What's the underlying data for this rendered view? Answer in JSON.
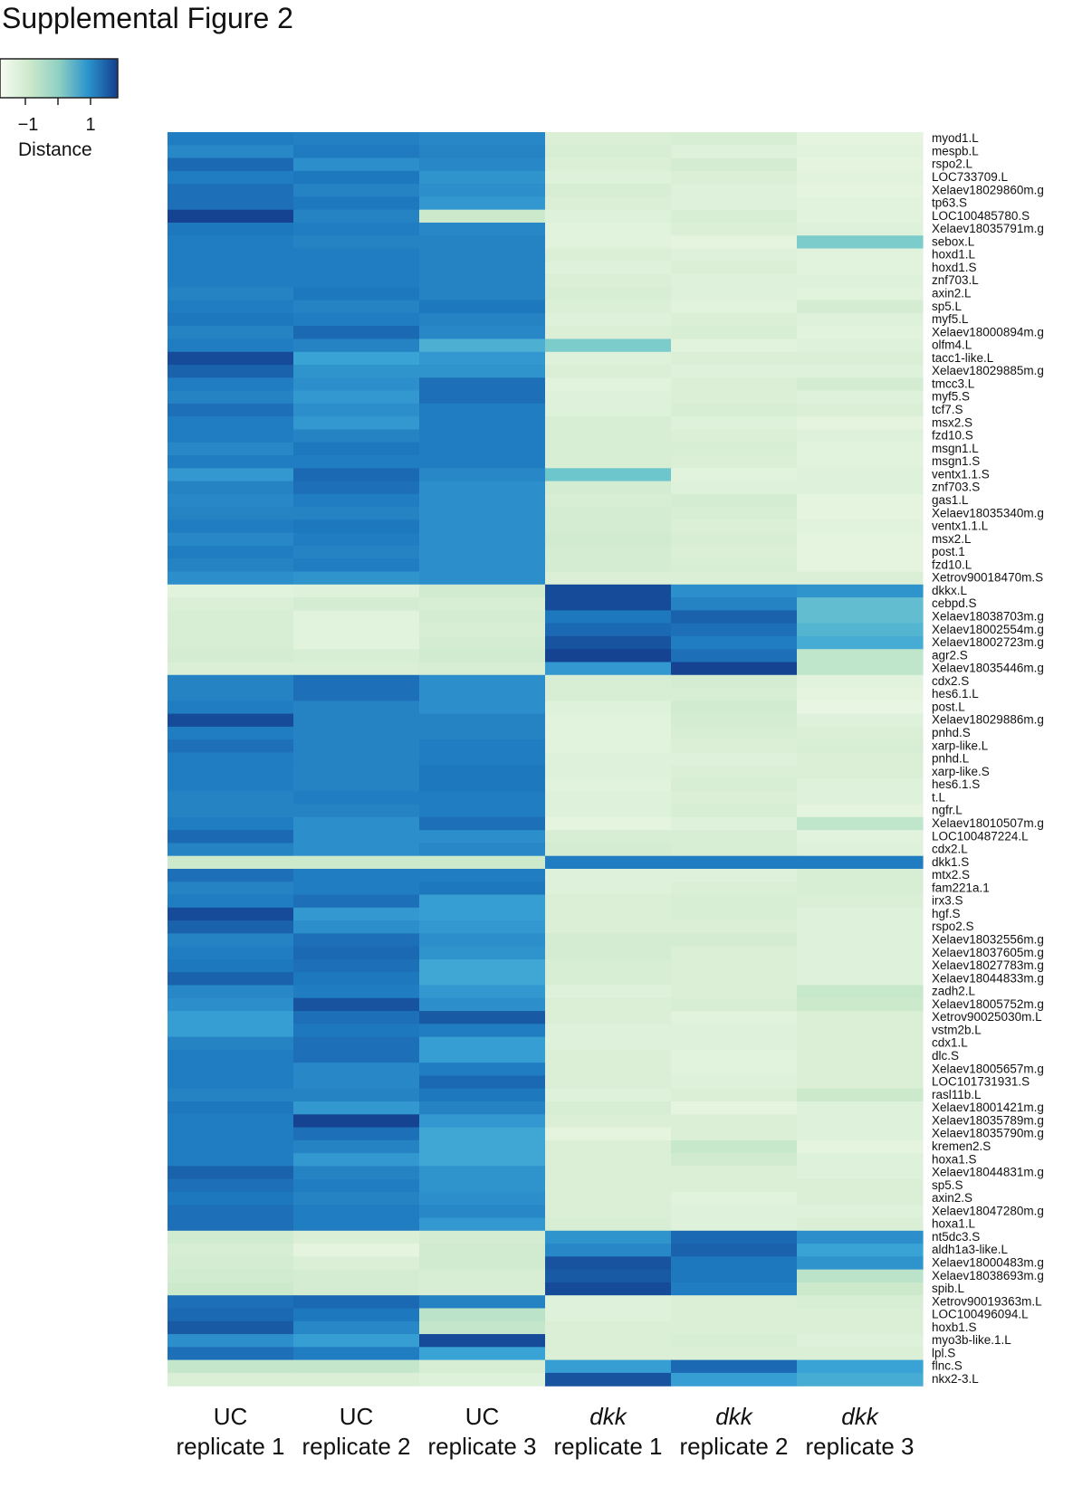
{
  "title": "Supplemental Figure 2",
  "legend": {
    "title": "Distance",
    "ticks": [
      "−1",
      "1"
    ],
    "low_color": "#f7fbf1",
    "high_color": "#1a4f9a"
  },
  "chart_data": {
    "type": "heatmap",
    "title": "Supplemental Figure 2",
    "columns": [
      {
        "top": "UC",
        "bottom": "replicate 1",
        "italic": false
      },
      {
        "top": "UC",
        "bottom": "replicate 2",
        "italic": false
      },
      {
        "top": "UC",
        "bottom": "replicate 3",
        "italic": false
      },
      {
        "top": "dkk",
        "bottom": "replicate 1",
        "italic": true
      },
      {
        "top": "dkk",
        "bottom": "replicate 2",
        "italic": true
      },
      {
        "top": "dkk",
        "bottom": "replicate 3",
        "italic": true
      }
    ],
    "rows": [
      "myod1.L",
      "mespb.L",
      "rspo2.L",
      "LOC733709.L",
      "Xelaev18029860m.g",
      "tp63.S",
      "LOC100485780.S",
      "Xelaev18035791m.g",
      "sebox.L",
      "hoxd1.L",
      "hoxd1.S",
      "znf703.L",
      "axin2.L",
      "sp5.L",
      "myf5.L",
      "Xelaev18000894m.g",
      "olfm4.L",
      "tacc1-like.L",
      "Xelaev18029885m.g",
      "tmcc3.L",
      "myf5.S",
      "tcf7.S",
      "msx2.S",
      "fzd10.S",
      "msgn1.L",
      "msgn1.S",
      "ventx1.1.S",
      "znf703.S",
      "gas1.L",
      "Xelaev18035340m.g",
      "ventx1.1.L",
      "msx2.L",
      "post.1",
      "fzd10.L",
      "Xetrov90018470m.S",
      "dkkx.L",
      "cebpd.S",
      "Xelaev18038703m.g",
      "Xelaev18002554m.g",
      "Xelaev18002723m.g",
      "agr2.S",
      "Xelaev18035446m.g",
      "cdx2.S",
      "hes6.1.L",
      "post.L",
      "Xelaev18029886m.g",
      "pnhd.S",
      "xarp-like.L",
      "pnhd.L",
      "xarp-like.S",
      "hes6.1.S",
      "t.L",
      "ngfr.L",
      "Xelaev18010507m.g",
      "LOC100487224.L",
      "cdx2.L",
      "dkk1.S",
      "mtx2.S",
      "fam221a.1",
      "irx3.S",
      "hgf.S",
      "rspo2.S",
      "Xelaev18032556m.g",
      "Xelaev18037605m.g",
      "Xelaev18027783m.g",
      "Xelaev18044833m.g",
      "zadh2.L",
      "Xelaev18005752m.g",
      "Xetrov90025030m.L",
      "vstm2b.L",
      "cdx1.L",
      "dlc.S",
      "Xelaev18005657m.g",
      "LOC101731931.S",
      "rasl11b.L",
      "Xelaev18001421m.g",
      "Xelaev18035789m.g",
      "Xelaev18035790m.g",
      "kremen2.S",
      "hoxa1.S",
      "Xelaev18044831m.g",
      "sp5.S",
      "axin2.S",
      "Xelaev18047280m.g",
      "hoxa1.L",
      "nt5dc3.S",
      "aldh1a3-like.L",
      "Xelaev18000483m.g",
      "Xelaev18038693m.g",
      "spib.L",
      "Xetrov90019363m.L",
      "LOC100496094.L",
      "hoxb1.S",
      "myo3b-like.1.L",
      "lpl.S",
      "flnc.S",
      "nkx2-3.L"
    ],
    "values": [
      [
        0.95,
        0.93,
        0.85,
        -0.8,
        -0.75,
        -0.95
      ],
      [
        0.85,
        0.98,
        0.9,
        -0.75,
        -0.85,
        -0.9
      ],
      [
        1.1,
        0.8,
        0.85,
        -0.8,
        -0.7,
        -0.95
      ],
      [
        0.95,
        1.0,
        0.75,
        -0.85,
        -0.8,
        -0.9
      ],
      [
        1.05,
        0.9,
        0.8,
        -0.75,
        -0.85,
        -0.95
      ],
      [
        1.05,
        1.0,
        0.7,
        -0.8,
        -0.85,
        -0.9
      ],
      [
        1.35,
        0.9,
        -0.6,
        -0.85,
        -0.75,
        -0.9
      ],
      [
        1.0,
        0.95,
        0.85,
        -0.9,
        -0.8,
        -0.85
      ],
      [
        0.95,
        0.9,
        0.9,
        -0.9,
        -0.95,
        0.1
      ],
      [
        0.95,
        0.95,
        0.9,
        -0.8,
        -0.85,
        -0.9
      ],
      [
        0.95,
        0.95,
        0.9,
        -0.85,
        -0.8,
        -0.9
      ],
      [
        0.95,
        0.95,
        0.9,
        -0.8,
        -0.85,
        -0.85
      ],
      [
        0.9,
        1.0,
        0.9,
        -0.75,
        -0.85,
        -0.9
      ],
      [
        0.95,
        0.9,
        1.0,
        -0.8,
        -0.9,
        -0.7
      ],
      [
        1.0,
        0.95,
        0.9,
        -0.85,
        -0.8,
        -0.85
      ],
      [
        0.9,
        1.1,
        0.85,
        -0.8,
        -0.75,
        -0.9
      ],
      [
        0.95,
        0.9,
        0.45,
        0.1,
        -0.9,
        -0.85
      ],
      [
        1.3,
        0.6,
        0.7,
        -0.85,
        -0.8,
        -0.8
      ],
      [
        1.15,
        0.75,
        0.75,
        -0.8,
        -0.85,
        -0.85
      ],
      [
        0.95,
        0.8,
        1.05,
        -0.9,
        -0.8,
        -0.7
      ],
      [
        0.9,
        0.7,
        1.05,
        -0.85,
        -0.8,
        -0.85
      ],
      [
        1.05,
        0.8,
        0.95,
        -0.85,
        -0.75,
        -0.8
      ],
      [
        0.95,
        0.7,
        0.95,
        -0.75,
        -0.85,
        -0.95
      ],
      [
        0.95,
        0.9,
        0.95,
        -0.75,
        -0.8,
        -0.85
      ],
      [
        0.85,
        1.0,
        0.95,
        -0.75,
        -0.75,
        -0.9
      ],
      [
        0.95,
        0.95,
        0.95,
        -0.75,
        -0.8,
        -0.9
      ],
      [
        0.7,
        1.1,
        0.85,
        0.2,
        -0.9,
        -0.85
      ],
      [
        0.9,
        1.05,
        0.8,
        -0.7,
        -0.85,
        -0.85
      ],
      [
        0.85,
        0.95,
        0.8,
        -0.75,
        -0.7,
        -0.95
      ],
      [
        0.9,
        0.9,
        0.8,
        -0.7,
        -0.75,
        -0.95
      ],
      [
        0.95,
        1.0,
        0.8,
        -0.7,
        -0.8,
        -0.9
      ],
      [
        0.85,
        0.95,
        0.8,
        -0.65,
        -0.75,
        -0.95
      ],
      [
        0.95,
        0.9,
        0.8,
        -0.7,
        -0.8,
        -0.95
      ],
      [
        0.9,
        0.95,
        0.8,
        -0.7,
        -0.75,
        -0.95
      ],
      [
        0.8,
        0.75,
        0.8,
        -0.8,
        -0.8,
        -0.8
      ],
      [
        -0.9,
        -0.85,
        -0.65,
        1.3,
        0.8,
        0.75
      ],
      [
        -0.8,
        -0.7,
        -0.75,
        1.3,
        0.9,
        0.3
      ],
      [
        -0.75,
        -0.9,
        -0.7,
        1.0,
        1.15,
        0.3
      ],
      [
        -0.75,
        -0.9,
        -0.75,
        1.1,
        1.05,
        0.4
      ],
      [
        -0.75,
        -0.9,
        -0.7,
        1.25,
        0.95,
        0.5
      ],
      [
        -0.7,
        -0.75,
        -0.65,
        1.35,
        1.05,
        -0.45
      ],
      [
        -0.8,
        -0.8,
        -0.75,
        0.7,
        1.35,
        -0.45
      ],
      [
        0.9,
        1.05,
        0.8,
        -0.75,
        -0.7,
        -0.9
      ],
      [
        0.9,
        1.05,
        0.8,
        -0.75,
        -0.75,
        -0.95
      ],
      [
        0.95,
        0.9,
        0.8,
        -0.85,
        -0.65,
        -1.0
      ],
      [
        1.3,
        0.9,
        0.9,
        -0.9,
        -0.7,
        -0.85
      ],
      [
        0.95,
        0.9,
        0.9,
        -0.9,
        -0.75,
        -0.8
      ],
      [
        1.05,
        0.9,
        0.95,
        -0.9,
        -0.8,
        -0.75
      ],
      [
        0.95,
        0.9,
        0.95,
        -0.85,
        -0.85,
        -0.8
      ],
      [
        0.95,
        0.9,
        1.0,
        -0.85,
        -0.8,
        -0.8
      ],
      [
        0.95,
        0.9,
        1.0,
        -0.9,
        -0.75,
        -0.85
      ],
      [
        0.9,
        0.95,
        0.95,
        -0.85,
        -0.8,
        -0.85
      ],
      [
        0.9,
        0.9,
        0.95,
        -0.85,
        -0.75,
        -0.95
      ],
      [
        0.95,
        0.8,
        1.05,
        -0.95,
        -0.85,
        -0.45
      ],
      [
        1.1,
        0.8,
        0.8,
        -0.75,
        -0.75,
        -0.9
      ],
      [
        0.9,
        0.8,
        0.85,
        -0.7,
        -0.75,
        -0.85
      ],
      [
        -0.6,
        -0.6,
        -0.6,
        0.95,
        0.95,
        0.95
      ],
      [
        1.05,
        0.95,
        0.95,
        -0.85,
        -0.85,
        -0.75
      ],
      [
        0.9,
        0.95,
        1.0,
        -0.85,
        -0.8,
        -0.75
      ],
      [
        0.95,
        1.05,
        0.65,
        -0.8,
        -0.75,
        -0.8
      ],
      [
        1.3,
        0.7,
        0.65,
        -0.8,
        -0.75,
        -0.85
      ],
      [
        1.15,
        0.8,
        0.7,
        -0.8,
        -0.8,
        -0.85
      ],
      [
        0.9,
        1.05,
        0.8,
        -0.7,
        -0.7,
        -0.85
      ],
      [
        0.95,
        1.1,
        0.75,
        -0.7,
        -0.8,
        -0.85
      ],
      [
        1.0,
        1.05,
        0.55,
        -0.75,
        -0.8,
        -0.85
      ],
      [
        1.15,
        1.0,
        0.55,
        -0.75,
        -0.8,
        -0.85
      ],
      [
        0.85,
        0.95,
        0.7,
        -0.85,
        -0.8,
        -0.55
      ],
      [
        0.8,
        1.25,
        0.8,
        -0.8,
        -0.75,
        -0.6
      ],
      [
        0.65,
        1.05,
        1.2,
        -0.8,
        -0.9,
        -0.8
      ],
      [
        0.65,
        1.0,
        0.95,
        -0.85,
        -0.85,
        -0.8
      ],
      [
        0.9,
        1.05,
        0.65,
        -0.85,
        -0.85,
        -0.8
      ],
      [
        0.95,
        1.05,
        0.65,
        -0.8,
        -0.9,
        -0.8
      ],
      [
        0.95,
        0.85,
        0.95,
        -0.8,
        -0.9,
        -0.8
      ],
      [
        0.95,
        0.85,
        1.1,
        -0.8,
        -0.85,
        -0.8
      ],
      [
        0.9,
        0.9,
        1.0,
        -0.85,
        -0.8,
        -0.6
      ],
      [
        1.0,
        0.7,
        0.9,
        -0.75,
        -0.95,
        -0.85
      ],
      [
        0.95,
        1.35,
        0.7,
        -0.8,
        -0.8,
        -0.85
      ],
      [
        0.95,
        1.05,
        0.55,
        -0.95,
        -0.8,
        -0.85
      ],
      [
        0.95,
        0.9,
        0.55,
        -0.8,
        -0.55,
        -0.95
      ],
      [
        0.95,
        0.7,
        0.55,
        -0.8,
        -0.65,
        -0.85
      ],
      [
        1.15,
        0.9,
        0.75,
        -0.8,
        -0.8,
        -0.85
      ],
      [
        1.05,
        0.95,
        0.75,
        -0.8,
        -0.8,
        -0.8
      ],
      [
        1.0,
        0.9,
        0.8,
        -0.8,
        -0.9,
        -0.8
      ],
      [
        1.05,
        0.95,
        0.85,
        -0.8,
        -0.85,
        -0.85
      ],
      [
        1.05,
        0.95,
        0.7,
        -0.75,
        -0.85,
        -0.8
      ],
      [
        -0.65,
        -0.8,
        -0.7,
        0.75,
        1.1,
        0.8
      ],
      [
        -0.75,
        -0.95,
        -0.65,
        0.85,
        1.15,
        0.6
      ],
      [
        -0.7,
        -0.8,
        -0.65,
        1.25,
        1.0,
        0.75
      ],
      [
        -0.65,
        -0.7,
        -0.75,
        1.2,
        1.0,
        -0.4
      ],
      [
        -0.6,
        -0.7,
        -0.75,
        1.3,
        0.95,
        -0.6
      ],
      [
        1.05,
        1.1,
        0.9,
        -0.85,
        -0.8,
        -0.75
      ],
      [
        1.1,
        1.0,
        -0.4,
        -0.85,
        -0.8,
        -0.8
      ],
      [
        1.2,
        0.85,
        -0.5,
        -0.8,
        -0.8,
        -0.8
      ],
      [
        0.8,
        0.65,
        1.3,
        -0.8,
        -0.75,
        -0.85
      ],
      [
        1.05,
        0.95,
        0.6,
        -0.8,
        -0.8,
        -0.8
      ],
      [
        -0.5,
        -0.5,
        -0.75,
        0.65,
        1.1,
        0.6
      ],
      [
        -0.8,
        -0.8,
        -0.85,
        1.25,
        0.65,
        0.5
      ]
    ]
  }
}
